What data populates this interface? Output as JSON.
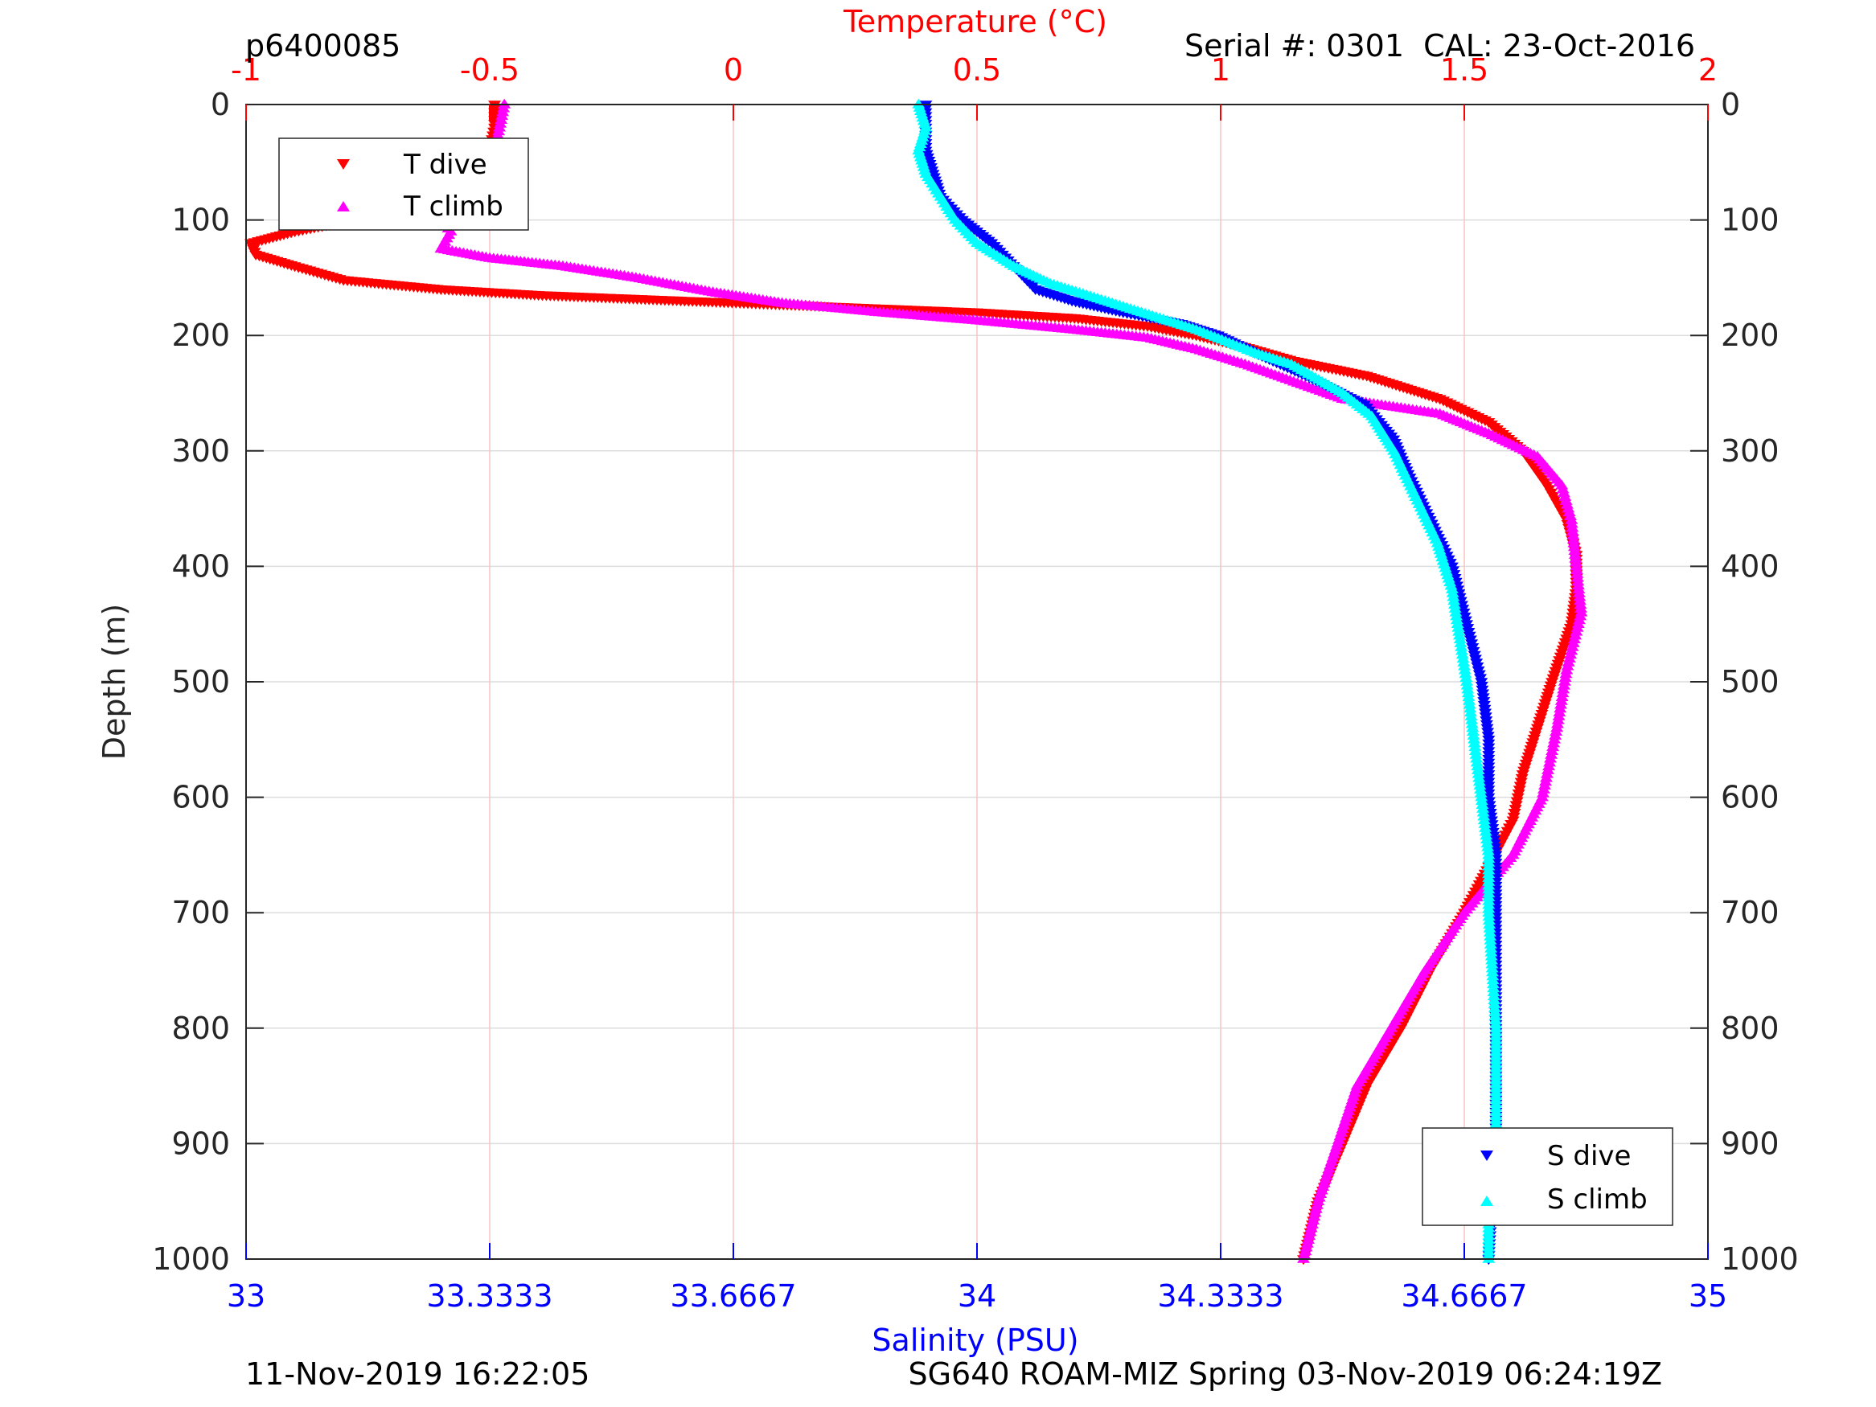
{
  "header": {
    "profile_id": "p6400085",
    "serial_cal": "Serial #: 0301  CAL: 23-Oct-2016"
  },
  "footer": {
    "left_text": "11-Nov-2019 16:22:05",
    "right_text": "SG640 ROAM-MIZ Spring 03-Nov-2019 06:24:19Z"
  },
  "colors": {
    "temperature": "#ff0000",
    "salinity": "#0000ff",
    "t_dive": "#ff0000",
    "t_climb": "#ff00ff",
    "s_dive": "#0000ff",
    "s_climb": "#00ffff",
    "axis": "#262626",
    "grid_depth": "#dcdcdc",
    "grid_temp": "#f7c4c4"
  },
  "chart_data": {
    "type": "scatter",
    "title": "",
    "y_axis": {
      "label": "Depth (m)",
      "range": [
        0,
        1000
      ],
      "reversed": true,
      "ticks": [
        "0",
        "100",
        "200",
        "300",
        "400",
        "500",
        "600",
        "700",
        "800",
        "900",
        "1000"
      ]
    },
    "top_axis": {
      "label": "Temperature (°C)",
      "range": [
        -1,
        2
      ],
      "ticks": [
        "-1",
        "-0.5",
        "0",
        "0.5",
        "1",
        "1.5",
        "2"
      ]
    },
    "bottom_axis": {
      "label": "Salinity (PSU)",
      "range": [
        33,
        35
      ],
      "ticks": [
        "33",
        "33.3333",
        "33.6667",
        "34",
        "34.3333",
        "34.6667",
        "35"
      ]
    },
    "grid": true,
    "legends": [
      {
        "placement": "top-left",
        "entries": [
          "T dive",
          "T climb"
        ]
      },
      {
        "placement": "bottom-right",
        "entries": [
          "S dive",
          "S climb"
        ]
      }
    ],
    "series": [
      {
        "name": "T dive",
        "axis": "temperature",
        "marker": "triangle-down",
        "points": [
          [
            -0.49,
            0
          ],
          [
            -0.49,
            20
          ],
          [
            -0.5,
            40
          ],
          [
            -0.52,
            60
          ],
          [
            -0.55,
            75
          ],
          [
            -0.65,
            90
          ],
          [
            -0.78,
            100
          ],
          [
            -0.9,
            110
          ],
          [
            -0.99,
            120
          ],
          [
            -0.98,
            130
          ],
          [
            -0.9,
            140
          ],
          [
            -0.8,
            152
          ],
          [
            -0.6,
            160
          ],
          [
            -0.4,
            165
          ],
          [
            -0.1,
            170
          ],
          [
            0.2,
            175
          ],
          [
            0.5,
            180
          ],
          [
            0.7,
            185
          ],
          [
            0.85,
            192
          ],
          [
            0.95,
            200
          ],
          [
            1.05,
            210
          ],
          [
            1.15,
            222
          ],
          [
            1.3,
            235
          ],
          [
            1.45,
            255
          ],
          [
            1.55,
            275
          ],
          [
            1.62,
            300
          ],
          [
            1.67,
            330
          ],
          [
            1.71,
            360
          ],
          [
            1.73,
            390
          ],
          [
            1.73,
            420
          ],
          [
            1.72,
            450
          ],
          [
            1.68,
            500
          ],
          [
            1.65,
            540
          ],
          [
            1.62,
            580
          ],
          [
            1.6,
            620
          ],
          [
            1.55,
            660
          ],
          [
            1.5,
            700
          ],
          [
            1.43,
            750
          ],
          [
            1.37,
            800
          ],
          [
            1.3,
            850
          ],
          [
            1.25,
            900
          ],
          [
            1.2,
            950
          ],
          [
            1.17,
            1000
          ]
        ]
      },
      {
        "name": "T climb",
        "axis": "temperature",
        "marker": "triangle-up",
        "points": [
          [
            -0.47,
            0
          ],
          [
            -0.48,
            20
          ],
          [
            -0.49,
            40
          ],
          [
            -0.51,
            60
          ],
          [
            -0.55,
            80
          ],
          [
            -0.6,
            100
          ],
          [
            -0.58,
            110
          ],
          [
            -0.6,
            125
          ],
          [
            -0.5,
            133
          ],
          [
            -0.35,
            140
          ],
          [
            -0.2,
            150
          ],
          [
            -0.05,
            162
          ],
          [
            0.1,
            172
          ],
          [
            0.3,
            180
          ],
          [
            0.5,
            187
          ],
          [
            0.7,
            195
          ],
          [
            0.85,
            202
          ],
          [
            0.95,
            212
          ],
          [
            1.05,
            225
          ],
          [
            1.25,
            255
          ],
          [
            1.45,
            268
          ],
          [
            1.55,
            285
          ],
          [
            1.65,
            305
          ],
          [
            1.7,
            330
          ],
          [
            1.72,
            360
          ],
          [
            1.73,
            400
          ],
          [
            1.74,
            440
          ],
          [
            1.71,
            490
          ],
          [
            1.69,
            540
          ],
          [
            1.66,
            600
          ],
          [
            1.6,
            650
          ],
          [
            1.5,
            700
          ],
          [
            1.42,
            750
          ],
          [
            1.35,
            800
          ],
          [
            1.28,
            850
          ],
          [
            1.24,
            900
          ],
          [
            1.2,
            950
          ],
          [
            1.17,
            1000
          ]
        ]
      },
      {
        "name": "S dive",
        "axis": "salinity",
        "marker": "triangle-down",
        "points": [
          [
            33.93,
            0
          ],
          [
            33.93,
            20
          ],
          [
            33.93,
            40
          ],
          [
            33.94,
            60
          ],
          [
            33.95,
            80
          ],
          [
            33.98,
            100
          ],
          [
            34.02,
            120
          ],
          [
            34.05,
            140
          ],
          [
            34.08,
            160
          ],
          [
            34.13,
            170
          ],
          [
            34.2,
            180
          ],
          [
            34.28,
            190
          ],
          [
            34.33,
            200
          ],
          [
            34.38,
            215
          ],
          [
            34.45,
            235
          ],
          [
            34.53,
            260
          ],
          [
            34.57,
            290
          ],
          [
            34.59,
            320
          ],
          [
            34.62,
            360
          ],
          [
            34.65,
            400
          ],
          [
            34.67,
            450
          ],
          [
            34.69,
            500
          ],
          [
            34.7,
            550
          ],
          [
            34.7,
            600
          ],
          [
            34.71,
            650
          ],
          [
            34.71,
            700
          ],
          [
            34.71,
            800
          ],
          [
            34.71,
            900
          ],
          [
            34.7,
            1000
          ]
        ]
      },
      {
        "name": "S climb",
        "axis": "salinity",
        "marker": "triangle-up",
        "points": [
          [
            33.92,
            0
          ],
          [
            33.93,
            20
          ],
          [
            33.92,
            40
          ],
          [
            33.93,
            60
          ],
          [
            33.95,
            80
          ],
          [
            33.97,
            100
          ],
          [
            34.0,
            120
          ],
          [
            34.05,
            140
          ],
          [
            34.1,
            155
          ],
          [
            34.15,
            165
          ],
          [
            34.2,
            175
          ],
          [
            34.25,
            185
          ],
          [
            34.3,
            195
          ],
          [
            34.34,
            205
          ],
          [
            34.38,
            215
          ],
          [
            34.43,
            225
          ],
          [
            34.5,
            250
          ],
          [
            34.54,
            270
          ],
          [
            34.57,
            300
          ],
          [
            34.6,
            340
          ],
          [
            34.63,
            380
          ],
          [
            34.65,
            420
          ],
          [
            34.66,
            460
          ],
          [
            34.67,
            500
          ],
          [
            34.68,
            550
          ],
          [
            34.69,
            600
          ],
          [
            34.7,
            650
          ],
          [
            34.7,
            700
          ],
          [
            34.71,
            800
          ],
          [
            34.71,
            900
          ],
          [
            34.7,
            950
          ],
          [
            34.7,
            1000
          ]
        ]
      }
    ]
  }
}
